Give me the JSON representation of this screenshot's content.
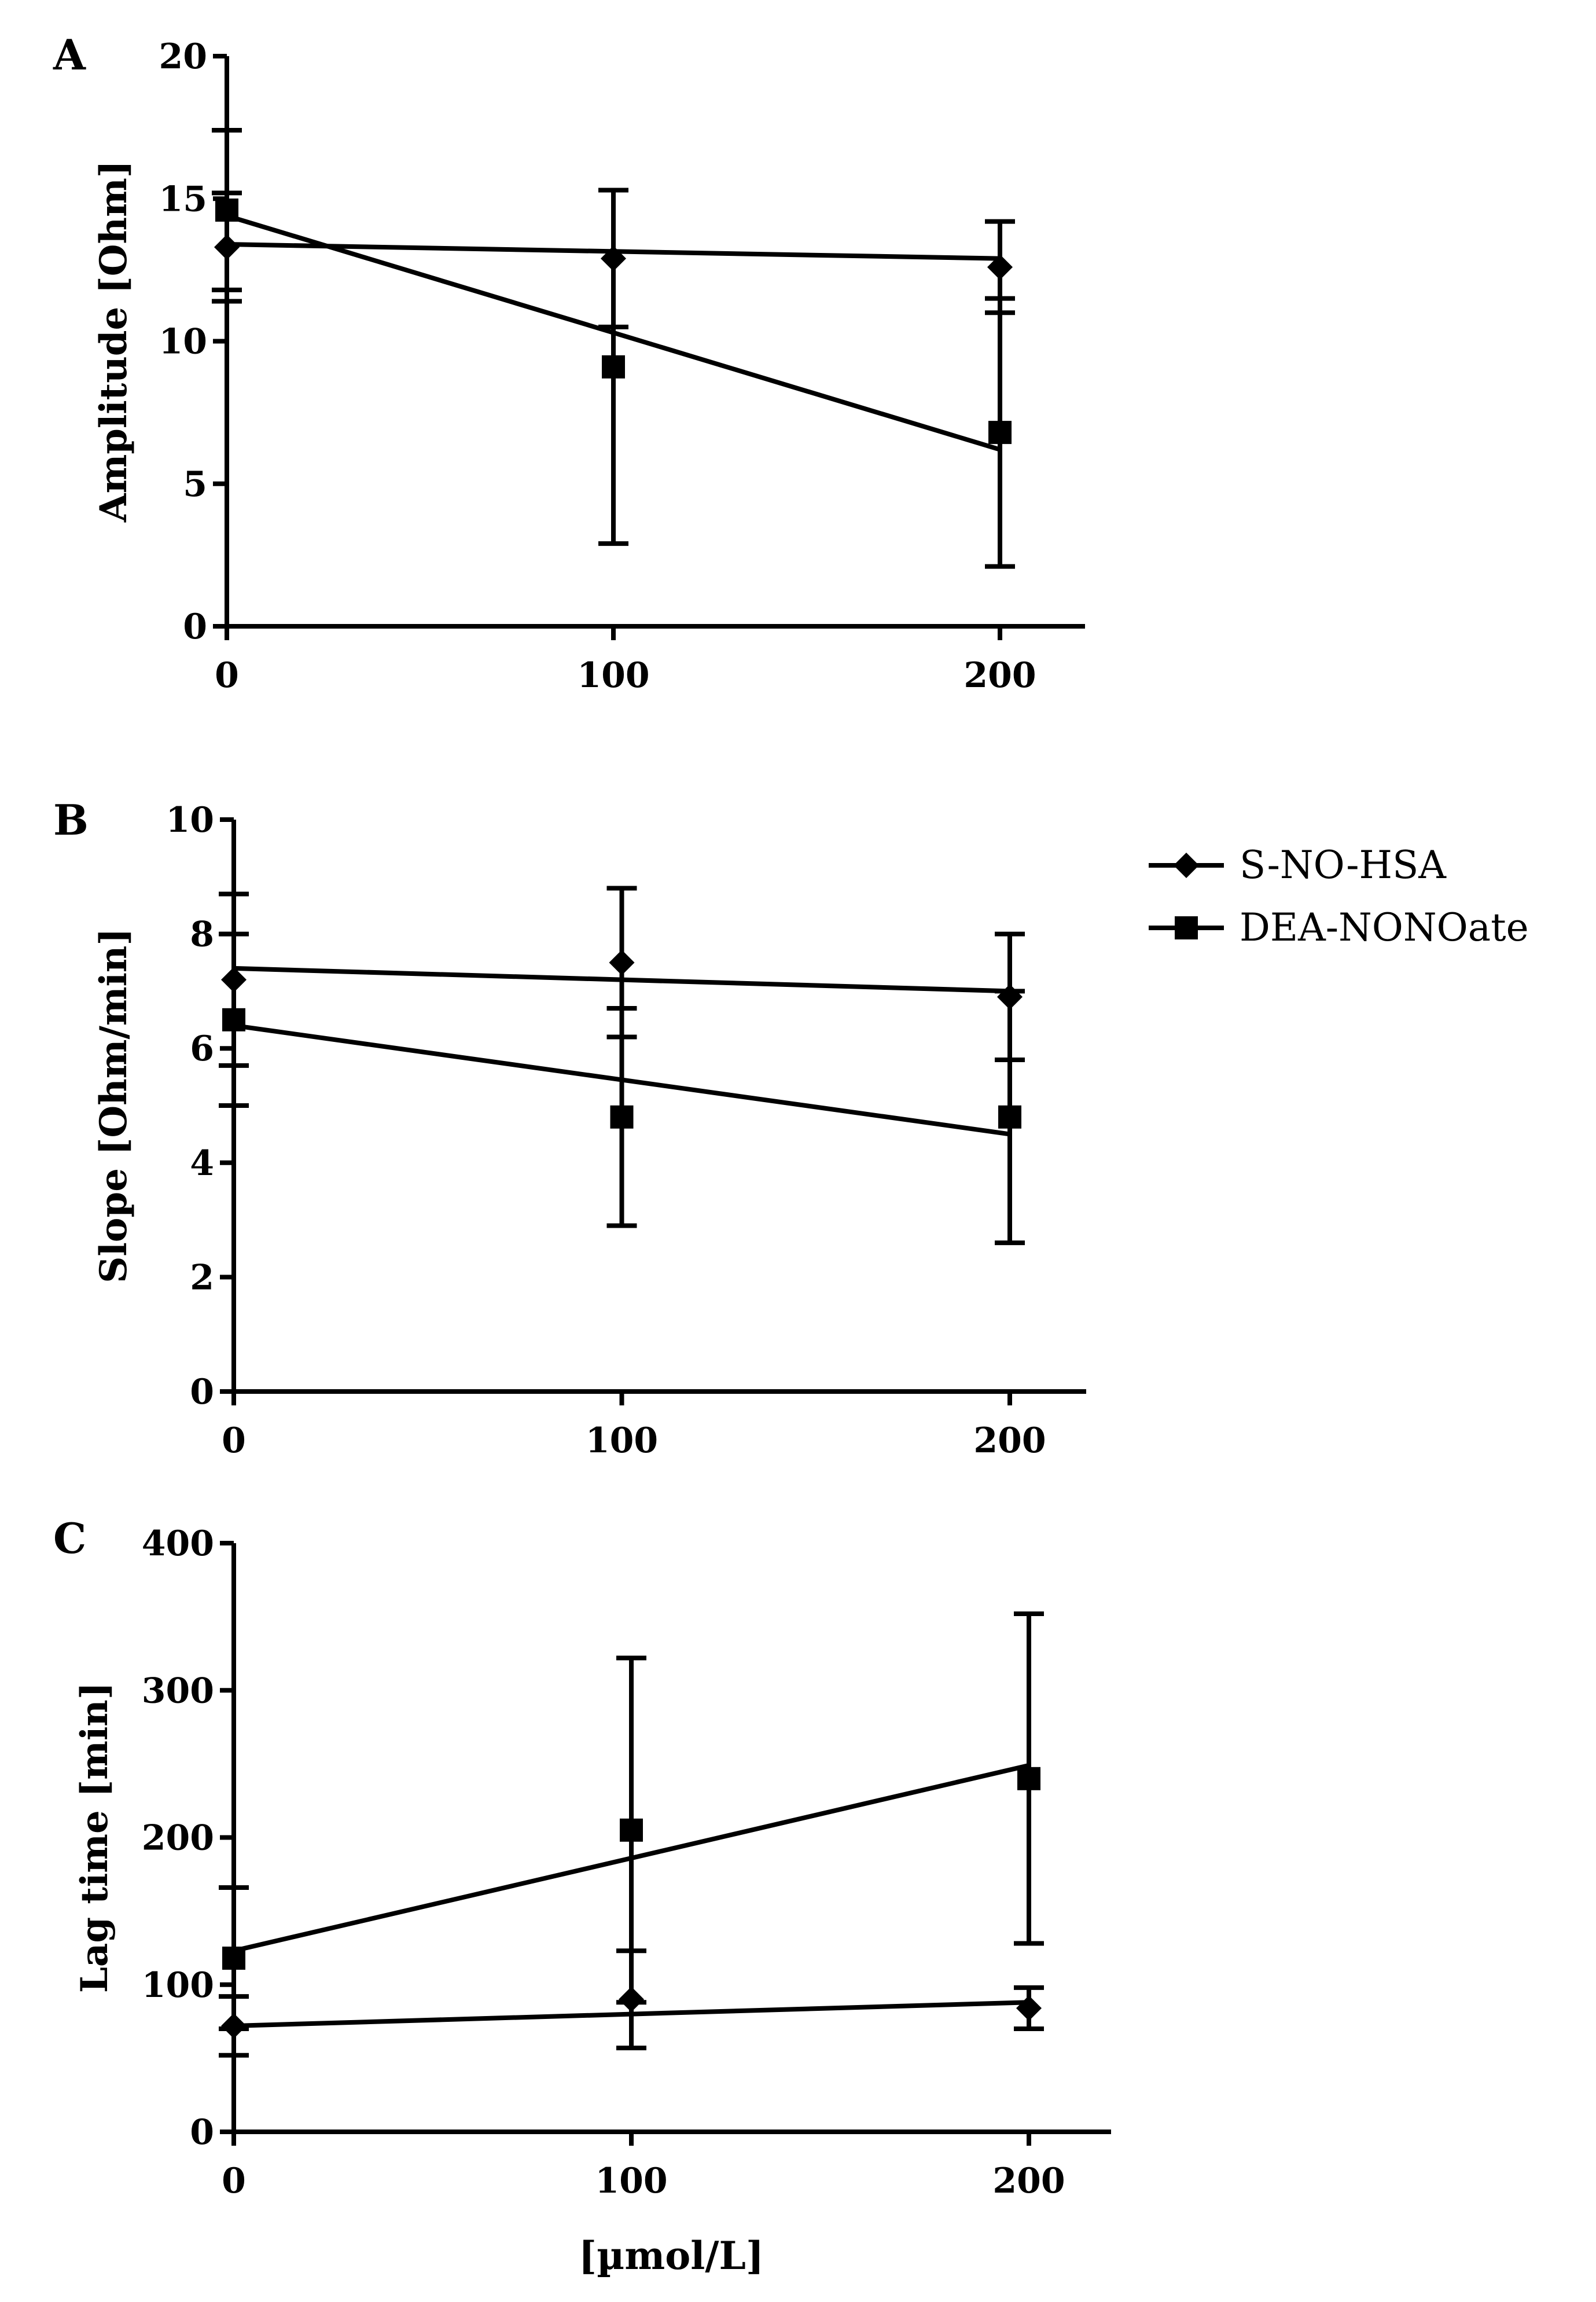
{
  "legend": [
    {
      "name": "S-NO-HSA",
      "marker": "diamond"
    },
    {
      "name": "DEA-NONOate",
      "marker": "square"
    }
  ],
  "x_axis_label": "[µmol/L]",
  "chart_data": [
    {
      "type": "line",
      "panel": "A",
      "ylabel": "Amplitude [Ohm]",
      "x": [
        0,
        100,
        200
      ],
      "xticks": [
        "0",
        "100",
        "200"
      ],
      "ylim": [
        0,
        20
      ],
      "yticks": [
        "0",
        "5",
        "10",
        "15",
        "20"
      ],
      "series": [
        {
          "name": "S-NO-HSA",
          "marker": "diamond",
          "values": [
            13.3,
            12.9,
            12.6
          ],
          "err": [
            1.9,
            2.4,
            1.6
          ],
          "fit": [
            13.4,
            12.9
          ]
        },
        {
          "name": "DEA-NONOate",
          "marker": "square",
          "values": [
            14.6,
            9.1,
            6.8
          ],
          "err": [
            2.8,
            6.2,
            4.7
          ],
          "fit": [
            14.4,
            6.2
          ]
        }
      ]
    },
    {
      "type": "line",
      "panel": "B",
      "ylabel": "Slope [Ohm/min]",
      "x": [
        0,
        100,
        200
      ],
      "xticks": [
        "0",
        "100",
        "200"
      ],
      "ylim": [
        0,
        10
      ],
      "yticks": [
        "0",
        "2",
        "4",
        "6",
        "8",
        "10"
      ],
      "series": [
        {
          "name": "S-NO-HSA",
          "marker": "diamond",
          "values": [
            7.2,
            7.5,
            6.9
          ],
          "err": [
            1.5,
            1.3,
            1.1
          ],
          "fit": [
            7.4,
            7.0
          ]
        },
        {
          "name": "DEA-NONOate",
          "marker": "square",
          "values": [
            6.5,
            4.8,
            4.8
          ],
          "err": [
            1.5,
            1.9,
            2.2
          ],
          "fit": [
            6.4,
            4.5
          ]
        }
      ]
    },
    {
      "type": "line",
      "panel": "C",
      "ylabel": "Lag time [min]",
      "x": [
        0,
        100,
        200
      ],
      "xticks": [
        "0",
        "100",
        "200"
      ],
      "ylim": [
        0,
        400
      ],
      "yticks": [
        "0",
        "100",
        "200",
        "300",
        "400"
      ],
      "series": [
        {
          "name": "S-NO-HSA",
          "marker": "diamond",
          "values": [
            72,
            90,
            84
          ],
          "err": [
            20,
            33,
            14
          ],
          "fit": [
            72,
            88
          ]
        },
        {
          "name": "DEA-NONOate",
          "marker": "square",
          "values": [
            118,
            205,
            240
          ],
          "err": [
            48,
            117,
            112
          ],
          "fit": [
            123,
            249
          ]
        }
      ]
    }
  ]
}
